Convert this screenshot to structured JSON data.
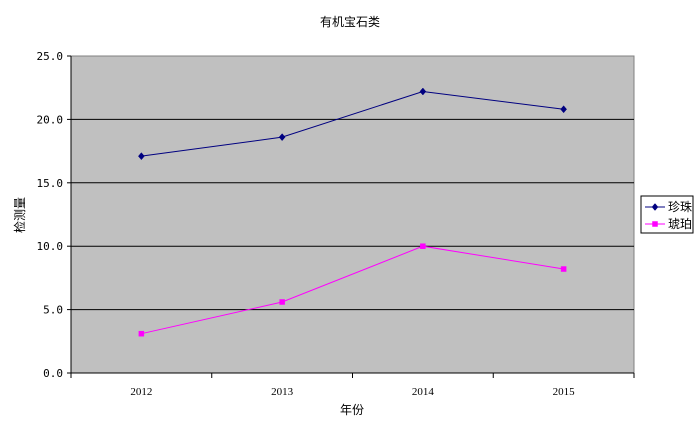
{
  "chart_data": {
    "type": "line",
    "title": "有机宝石类",
    "xlabel": "年份",
    "ylabel": "检测量",
    "categories": [
      "2012",
      "2013",
      "2014",
      "2015"
    ],
    "ylim": [
      0,
      25
    ],
    "yticks": [
      "0.0",
      "5.0",
      "10.0",
      "15.0",
      "20.0",
      "25.0"
    ],
    "grid": true,
    "legend_position": "right",
    "plot_background": "#c0c0c0",
    "series": [
      {
        "name": "珍珠",
        "values": [
          17.1,
          18.6,
          22.2,
          20.8
        ],
        "color": "#000080",
        "marker": "diamond"
      },
      {
        "name": "琥珀",
        "values": [
          3.1,
          5.6,
          10.0,
          8.2
        ],
        "color": "#ff00ff",
        "marker": "square"
      }
    ]
  }
}
